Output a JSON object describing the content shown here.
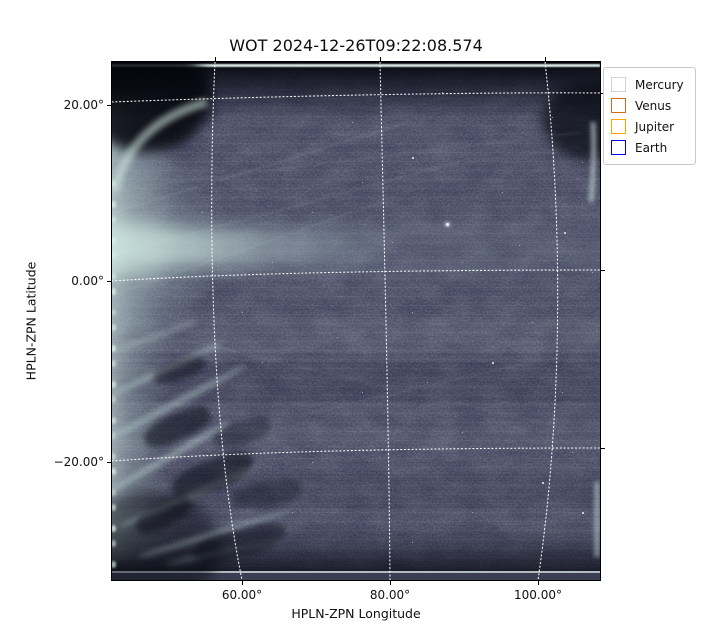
{
  "title": "WOT 2024-12-26T09:22:08.574",
  "axes": {
    "x": {
      "label": "HPLN-ZPN Longitude",
      "ticks": [
        {
          "label": "60.00°"
        },
        {
          "label": "80.00°"
        },
        {
          "label": "100.00°"
        }
      ]
    },
    "y": {
      "label": "HPLN-ZPN Latitude",
      "ticks": [
        {
          "label": "20.00°"
        },
        {
          "label": "0.00°"
        },
        {
          "label": "−20.00°"
        }
      ]
    }
  },
  "legend": {
    "items": [
      {
        "label": "Mercury",
        "color": "#d3d3d3"
      },
      {
        "label": "Venus",
        "color": "#d2691e"
      },
      {
        "label": "Jupiter",
        "color": "#ffa500"
      },
      {
        "label": "Earth",
        "color": "#0000ff"
      }
    ]
  },
  "chart_data": {
    "type": "heatmap",
    "title": "WOT 2024-12-26T09:22:08.574",
    "xlabel": "HPLN-ZPN Longitude",
    "ylabel": "HPLN-ZPN Latitude",
    "x_tick_values_deg": [
      60,
      80,
      100
    ],
    "y_tick_values_deg": [
      20,
      0,
      -20
    ],
    "xlim_deg": [
      42,
      108
    ],
    "ylim_deg": [
      -33,
      25
    ],
    "grid": "dotted white curved celestial coordinate grid (ZPN projection)",
    "legend_position": "upper right, outside axes",
    "legend_entries": [
      {
        "name": "Mercury",
        "marker": "open square",
        "color": "#d3d3d3"
      },
      {
        "name": "Venus",
        "marker": "open square",
        "color": "#d2691e"
      },
      {
        "name": "Jupiter",
        "marker": "open square",
        "color": "#ffa500"
      },
      {
        "name": "Earth",
        "marker": "open square",
        "color": "#0000ff"
      }
    ],
    "image_description": "Wide-field heliospheric imager frame rendered in a dark slate-blue colormap with fine speckle noise; bright pale-teal zodiacal-light band near 0–5° latitude strongest at the left edge; bright feathered left rim with radial wisps; dark vignetted top and bottom edges each bounded by a thin bright line; faint diagonal streak artifacts; scattered white stars; no planet markers visible inside the field of view"
  }
}
